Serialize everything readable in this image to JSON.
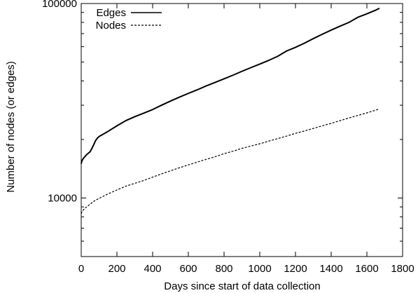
{
  "chart_data": {
    "type": "line",
    "title": "",
    "xlabel": "Days since start of data collection",
    "ylabel": "Number of nodes (or edges)",
    "x_range": [
      0,
      1800
    ],
    "y_range": [
      5000,
      100000
    ],
    "y_scale": "log",
    "x_ticks": [
      0,
      200,
      400,
      600,
      800,
      1000,
      1200,
      1400,
      1600,
      1800
    ],
    "x_tick_labels": [
      "0",
      "200",
      "400",
      "600",
      "800",
      "1000",
      "1200",
      "1400",
      "1600",
      "1800"
    ],
    "y_major_ticks": [
      10000,
      100000
    ],
    "y_tick_labels": [
      "10000",
      "100000"
    ],
    "grid": false,
    "legend": "top-left",
    "series": [
      {
        "name": "Edges",
        "line_style": "solid",
        "color": "#000000",
        "points": [
          [
            0,
            15000
          ],
          [
            2,
            15300
          ],
          [
            5,
            15600
          ],
          [
            10,
            15900
          ],
          [
            20,
            16300
          ],
          [
            30,
            16700
          ],
          [
            40,
            17000
          ],
          [
            50,
            17300
          ],
          [
            60,
            18000
          ],
          [
            70,
            18800
          ],
          [
            80,
            19700
          ],
          [
            90,
            20300
          ],
          [
            100,
            20700
          ],
          [
            150,
            22000
          ],
          [
            200,
            23500
          ],
          [
            250,
            25000
          ],
          [
            300,
            26200
          ],
          [
            350,
            27300
          ],
          [
            400,
            28500
          ],
          [
            450,
            30000
          ],
          [
            500,
            31500
          ],
          [
            550,
            33000
          ],
          [
            600,
            34500
          ],
          [
            650,
            36000
          ],
          [
            700,
            37700
          ],
          [
            750,
            39300
          ],
          [
            800,
            41000
          ],
          [
            850,
            42800
          ],
          [
            900,
            44800
          ],
          [
            950,
            46800
          ],
          [
            1000,
            48800
          ],
          [
            1050,
            51000
          ],
          [
            1100,
            53500
          ],
          [
            1150,
            57000
          ],
          [
            1200,
            59500
          ],
          [
            1250,
            62500
          ],
          [
            1300,
            66000
          ],
          [
            1350,
            69500
          ],
          [
            1400,
            73000
          ],
          [
            1450,
            76500
          ],
          [
            1500,
            80000
          ],
          [
            1550,
            85000
          ],
          [
            1600,
            88500
          ],
          [
            1650,
            92500
          ],
          [
            1670,
            94500
          ]
        ]
      },
      {
        "name": "Nodes",
        "line_style": "dashed",
        "color": "#000000",
        "points": [
          [
            0,
            8300
          ],
          [
            5,
            8500
          ],
          [
            10,
            8650
          ],
          [
            20,
            8850
          ],
          [
            30,
            9000
          ],
          [
            40,
            9150
          ],
          [
            50,
            9300
          ],
          [
            60,
            9450
          ],
          [
            70,
            9600
          ],
          [
            80,
            9750
          ],
          [
            90,
            9850
          ],
          [
            100,
            9950
          ],
          [
            150,
            10500
          ],
          [
            200,
            11000
          ],
          [
            250,
            11500
          ],
          [
            300,
            11900
          ],
          [
            350,
            12300
          ],
          [
            400,
            12800
          ],
          [
            450,
            13300
          ],
          [
            500,
            13800
          ],
          [
            550,
            14300
          ],
          [
            600,
            14800
          ],
          [
            650,
            15300
          ],
          [
            700,
            15800
          ],
          [
            750,
            16300
          ],
          [
            800,
            16900
          ],
          [
            850,
            17400
          ],
          [
            900,
            18000
          ],
          [
            950,
            18500
          ],
          [
            1000,
            19000
          ],
          [
            1050,
            19600
          ],
          [
            1100,
            20200
          ],
          [
            1150,
            20800
          ],
          [
            1200,
            21500
          ],
          [
            1250,
            22100
          ],
          [
            1300,
            22800
          ],
          [
            1350,
            23500
          ],
          [
            1400,
            24200
          ],
          [
            1450,
            25000
          ],
          [
            1500,
            25800
          ],
          [
            1550,
            26600
          ],
          [
            1600,
            27400
          ],
          [
            1650,
            28300
          ],
          [
            1670,
            28700
          ]
        ]
      }
    ]
  }
}
